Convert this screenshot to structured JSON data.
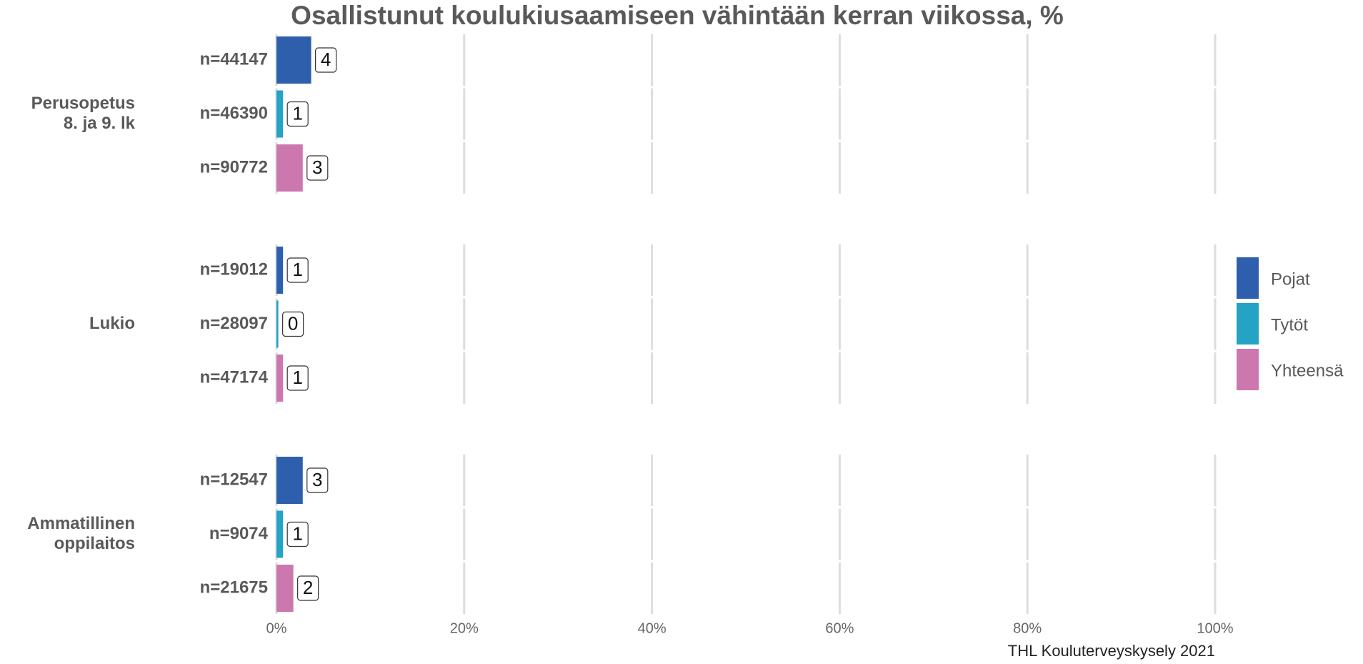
{
  "chart_data": {
    "type": "bar",
    "orientation": "horizontal",
    "title": "Osallistunut koulukiusaamiseen vähintään kerran viikossa, %",
    "caption": "THL Kouluterveyskysely 2021",
    "categories": [
      [
        "Perusopetus",
        "8. ja 9. lk"
      ],
      [
        "Lukio"
      ],
      [
        "Ammatillinen",
        "oppilaitos"
      ]
    ],
    "series": [
      {
        "name": "Pojat",
        "color": "#2e5fad",
        "values": [
          3.7,
          0.7,
          2.8
        ],
        "value_labels": [
          "4",
          "1",
          "3"
        ],
        "n_labels": [
          "n=44147",
          "n=19012",
          "n=12547"
        ]
      },
      {
        "name": "Tytöt",
        "color": "#25a3c4",
        "values": [
          0.7,
          0.2,
          0.7
        ],
        "value_labels": [
          "1",
          "0",
          "1"
        ],
        "n_labels": [
          "n=46390",
          "n=28097",
          "n=9074"
        ]
      },
      {
        "name": "Yhteensä",
        "color": "#cc77ad",
        "values": [
          2.8,
          0.7,
          1.8
        ],
        "value_labels": [
          "3",
          "1",
          "2"
        ],
        "n_labels": [
          "n=90772",
          "n=47174",
          "n=21675"
        ]
      }
    ],
    "xlim": [
      0,
      100
    ],
    "xticks": [
      {
        "value": 0,
        "label": "0%"
      },
      {
        "value": 20,
        "label": "20%"
      },
      {
        "value": 40,
        "label": "40%"
      },
      {
        "value": 60,
        "label": "60%"
      },
      {
        "value": 80,
        "label": "80%"
      },
      {
        "value": 100,
        "label": "100%"
      }
    ],
    "grid": true,
    "legend": "right"
  }
}
